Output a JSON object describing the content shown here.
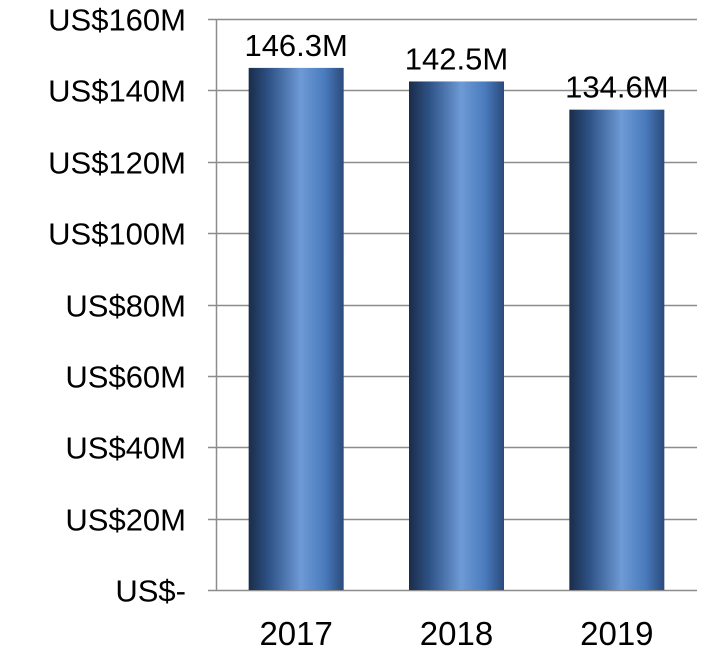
{
  "chart_data": {
    "type": "bar",
    "categories": [
      "2017",
      "2018",
      "2019"
    ],
    "values": [
      146.3,
      142.5,
      134.6
    ],
    "data_labels": [
      "146.3M",
      "142.5M",
      "134.6M"
    ],
    "unit": "US$ millions",
    "title": "",
    "xlabel": "",
    "ylabel": "",
    "ylim": [
      0,
      160
    ],
    "y_ticks": [
      0,
      20,
      40,
      60,
      80,
      100,
      120,
      140,
      160
    ],
    "y_tick_labels": [
      "US$-",
      "US$20M",
      "US$40M",
      "US$60M",
      "US$80M",
      "US$100M",
      "US$120M",
      "US$140M",
      "US$160M"
    ],
    "grid": true,
    "legend": "none",
    "colors": {
      "bar_dark": "#1a2c4a",
      "bar_mid": "#3a6aa8",
      "bar_light": "#6e9ad6",
      "gridline": "#8c8c8c",
      "text": "#000000"
    }
  }
}
